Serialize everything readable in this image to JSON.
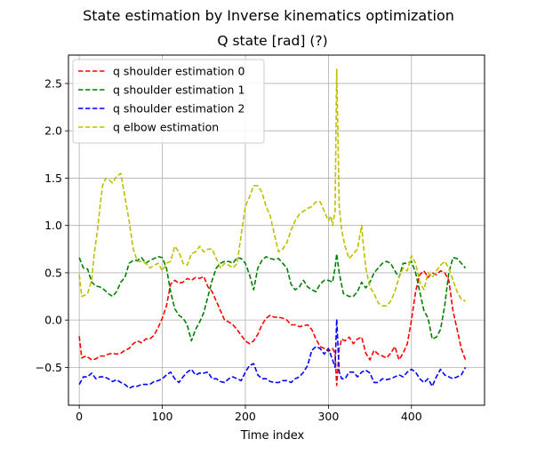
{
  "figure": {
    "suptitle": "State estimation by Inverse kinematics optimization"
  },
  "chart_data": {
    "type": "line",
    "title": "Q state [rad] (?)",
    "xlabel": "Time index",
    "ylabel": "",
    "xlim": [
      -13,
      488
    ],
    "ylim": [
      -0.9,
      2.8
    ],
    "xticks": [
      0,
      100,
      200,
      300,
      400
    ],
    "yticks": [
      -0.5,
      0.0,
      0.5,
      1.0,
      1.5,
      2.0,
      2.5
    ],
    "xtick_labels": [
      "0",
      "100",
      "200",
      "300",
      "400"
    ],
    "ytick_labels": [
      "−0.5",
      "0.0",
      "0.5",
      "1.0",
      "1.5",
      "2.0",
      "2.5"
    ],
    "grid": true,
    "legend_position": "upper-left",
    "line_style": "dashed",
    "series": [
      {
        "name": "q shoulder estimation 0",
        "color": "#ff0000",
        "x": [
          0,
          3,
          8,
          15,
          20,
          25,
          30,
          35,
          40,
          45,
          50,
          55,
          60,
          65,
          70,
          75,
          80,
          85,
          90,
          95,
          100,
          105,
          110,
          115,
          120,
          125,
          130,
          135,
          140,
          145,
          150,
          155,
          160,
          165,
          170,
          175,
          180,
          185,
          190,
          195,
          200,
          205,
          210,
          215,
          220,
          225,
          230,
          235,
          240,
          245,
          250,
          255,
          260,
          265,
          270,
          275,
          280,
          285,
          290,
          295,
          300,
          305,
          308,
          310,
          313,
          316,
          320,
          325,
          330,
          335,
          340,
          345,
          350,
          355,
          360,
          365,
          370,
          375,
          380,
          385,
          390,
          395,
          400,
          405,
          410,
          415,
          420,
          425,
          430,
          435,
          440,
          445,
          450,
          455,
          460,
          465
        ],
        "y": [
          -0.17,
          -0.4,
          -0.38,
          -0.42,
          -0.41,
          -0.38,
          -0.38,
          -0.36,
          -0.35,
          -0.36,
          -0.35,
          -0.32,
          -0.3,
          -0.25,
          -0.22,
          -0.24,
          -0.2,
          -0.2,
          -0.16,
          -0.08,
          0.02,
          0.15,
          0.38,
          0.42,
          0.39,
          0.4,
          0.44,
          0.42,
          0.45,
          0.44,
          0.46,
          0.35,
          0.3,
          0.2,
          0.1,
          0.0,
          -0.02,
          -0.05,
          -0.1,
          -0.16,
          -0.22,
          -0.25,
          -0.22,
          -0.15,
          -0.05,
          0.02,
          0.05,
          0.03,
          0.03,
          0.02,
          0.0,
          -0.05,
          -0.05,
          -0.07,
          -0.06,
          -0.05,
          -0.1,
          -0.2,
          -0.28,
          -0.3,
          -0.33,
          -0.3,
          -0.35,
          -0.69,
          -0.3,
          -0.2,
          -0.22,
          -0.18,
          -0.25,
          -0.2,
          -0.18,
          -0.35,
          -0.42,
          -0.32,
          -0.36,
          -0.38,
          -0.4,
          -0.35,
          -0.28,
          -0.42,
          -0.35,
          -0.25,
          0.0,
          0.3,
          0.48,
          0.52,
          0.45,
          0.5,
          0.48,
          0.52,
          0.5,
          0.42,
          0.1,
          -0.1,
          -0.3,
          -0.42
        ]
      },
      {
        "name": "q shoulder estimation 1",
        "color": "#008000",
        "x": [
          0,
          5,
          10,
          15,
          20,
          25,
          30,
          35,
          40,
          45,
          50,
          55,
          60,
          65,
          70,
          75,
          80,
          85,
          90,
          95,
          100,
          105,
          110,
          115,
          120,
          125,
          130,
          135,
          140,
          145,
          150,
          155,
          160,
          165,
          170,
          175,
          180,
          185,
          190,
          195,
          200,
          205,
          210,
          215,
          220,
          225,
          230,
          235,
          240,
          245,
          250,
          255,
          260,
          265,
          270,
          275,
          280,
          285,
          290,
          295,
          300,
          305,
          308,
          310,
          313,
          318,
          325,
          330,
          335,
          340,
          345,
          350,
          355,
          360,
          365,
          370,
          375,
          380,
          385,
          390,
          395,
          400,
          405,
          410,
          415,
          420,
          425,
          430,
          435,
          440,
          445,
          450,
          455,
          460,
          465
        ],
        "y": [
          0.66,
          0.55,
          0.54,
          0.4,
          0.36,
          0.35,
          0.32,
          0.28,
          0.25,
          0.3,
          0.4,
          0.45,
          0.6,
          0.63,
          0.63,
          0.66,
          0.6,
          0.63,
          0.65,
          0.67,
          0.66,
          0.55,
          0.3,
          0.12,
          0.05,
          0.02,
          -0.05,
          -0.22,
          -0.1,
          -0.02,
          0.08,
          0.25,
          0.42,
          0.55,
          0.6,
          0.62,
          0.62,
          0.6,
          0.66,
          0.65,
          0.6,
          0.48,
          0.32,
          0.55,
          0.63,
          0.67,
          0.65,
          0.64,
          0.65,
          0.6,
          0.55,
          0.38,
          0.32,
          0.35,
          0.42,
          0.35,
          0.32,
          0.3,
          0.38,
          0.42,
          0.42,
          0.4,
          0.55,
          0.7,
          0.5,
          0.28,
          0.25,
          0.25,
          0.3,
          0.4,
          0.34,
          0.4,
          0.5,
          0.55,
          0.6,
          0.62,
          0.6,
          0.52,
          0.45,
          0.6,
          0.6,
          0.62,
          0.5,
          0.3,
          0.1,
          0.02,
          -0.2,
          -0.18,
          -0.1,
          0.15,
          0.5,
          0.66,
          0.65,
          0.6,
          0.55
        ]
      },
      {
        "name": "q shoulder estimation 2",
        "color": "#0000ff",
        "x": [
          0,
          5,
          10,
          15,
          20,
          25,
          30,
          35,
          40,
          45,
          50,
          55,
          60,
          65,
          70,
          75,
          80,
          85,
          90,
          95,
          100,
          105,
          110,
          115,
          120,
          125,
          130,
          135,
          140,
          145,
          150,
          155,
          160,
          165,
          170,
          175,
          180,
          185,
          190,
          195,
          200,
          205,
          210,
          215,
          220,
          225,
          230,
          235,
          240,
          245,
          250,
          255,
          260,
          265,
          270,
          275,
          280,
          285,
          290,
          295,
          300,
          305,
          308,
          310,
          313,
          316,
          320,
          325,
          330,
          335,
          340,
          345,
          350,
          355,
          360,
          365,
          370,
          375,
          380,
          385,
          390,
          395,
          400,
          405,
          410,
          415,
          420,
          425,
          430,
          435,
          440,
          445,
          450,
          455,
          460,
          465
        ],
        "y": [
          -0.68,
          -0.6,
          -0.6,
          -0.56,
          -0.62,
          -0.6,
          -0.6,
          -0.62,
          -0.65,
          -0.63,
          -0.66,
          -0.68,
          -0.72,
          -0.7,
          -0.7,
          -0.68,
          -0.68,
          -0.68,
          -0.65,
          -0.64,
          -0.62,
          -0.58,
          -0.55,
          -0.62,
          -0.66,
          -0.6,
          -0.55,
          -0.52,
          -0.58,
          -0.56,
          -0.56,
          -0.55,
          -0.62,
          -0.62,
          -0.65,
          -0.66,
          -0.62,
          -0.6,
          -0.62,
          -0.64,
          -0.55,
          -0.48,
          -0.46,
          -0.58,
          -0.62,
          -0.62,
          -0.65,
          -0.66,
          -0.66,
          -0.64,
          -0.64,
          -0.66,
          -0.62,
          -0.6,
          -0.55,
          -0.48,
          -0.32,
          -0.28,
          -0.3,
          -0.36,
          -0.3,
          -0.42,
          -0.5,
          0.01,
          -0.55,
          -0.62,
          -0.62,
          -0.55,
          -0.55,
          -0.6,
          -0.55,
          -0.53,
          -0.56,
          -0.66,
          -0.66,
          -0.62,
          -0.63,
          -0.62,
          -0.6,
          -0.58,
          -0.6,
          -0.55,
          -0.52,
          -0.55,
          -0.62,
          -0.66,
          -0.62,
          -0.7,
          -0.6,
          -0.52,
          -0.58,
          -0.6,
          -0.62,
          -0.6,
          -0.58,
          -0.5
        ]
      },
      {
        "name": "q elbow estimation",
        "color": "#bfbf00",
        "x": [
          0,
          3,
          6,
          10,
          15,
          18,
          22,
          25,
          28,
          32,
          36,
          40,
          45,
          50,
          55,
          60,
          65,
          70,
          75,
          80,
          85,
          90,
          95,
          100,
          105,
          110,
          115,
          120,
          125,
          130,
          135,
          140,
          145,
          150,
          155,
          160,
          165,
          170,
          175,
          180,
          185,
          190,
          195,
          200,
          205,
          210,
          215,
          220,
          225,
          230,
          235,
          240,
          245,
          250,
          255,
          260,
          265,
          270,
          275,
          280,
          285,
          290,
          295,
          300,
          303,
          305,
          308,
          310,
          313,
          316,
          320,
          325,
          330,
          335,
          340,
          342,
          345,
          350,
          355,
          360,
          365,
          370,
          375,
          380,
          385,
          390,
          395,
          400,
          405,
          410,
          415,
          420,
          425,
          430,
          435,
          440,
          445,
          450,
          455,
          460,
          465
        ],
        "y": [
          0.48,
          0.25,
          0.26,
          0.28,
          0.42,
          0.7,
          0.95,
          1.2,
          1.42,
          1.5,
          1.48,
          1.45,
          1.52,
          1.55,
          1.3,
          1.05,
          0.75,
          0.62,
          0.62,
          0.6,
          0.55,
          0.58,
          0.6,
          0.52,
          0.6,
          0.62,
          0.78,
          0.72,
          0.6,
          0.58,
          0.7,
          0.72,
          0.78,
          0.72,
          0.75,
          0.75,
          0.65,
          0.55,
          0.6,
          0.58,
          0.55,
          0.6,
          0.9,
          1.2,
          1.3,
          1.42,
          1.42,
          1.35,
          1.2,
          1.1,
          0.9,
          0.72,
          0.75,
          0.82,
          0.95,
          1.05,
          1.12,
          1.15,
          1.18,
          1.2,
          1.25,
          1.25,
          1.15,
          1.05,
          1.1,
          1.0,
          1.15,
          2.65,
          1.2,
          0.95,
          0.78,
          0.65,
          0.7,
          0.75,
          1.0,
          0.8,
          0.55,
          0.35,
          0.28,
          0.18,
          0.15,
          0.15,
          0.2,
          0.3,
          0.45,
          0.55,
          0.52,
          0.68,
          0.6,
          0.4,
          0.32,
          0.5,
          0.45,
          0.52,
          0.58,
          0.62,
          0.55,
          0.42,
          0.3,
          0.22,
          0.2
        ]
      }
    ]
  }
}
